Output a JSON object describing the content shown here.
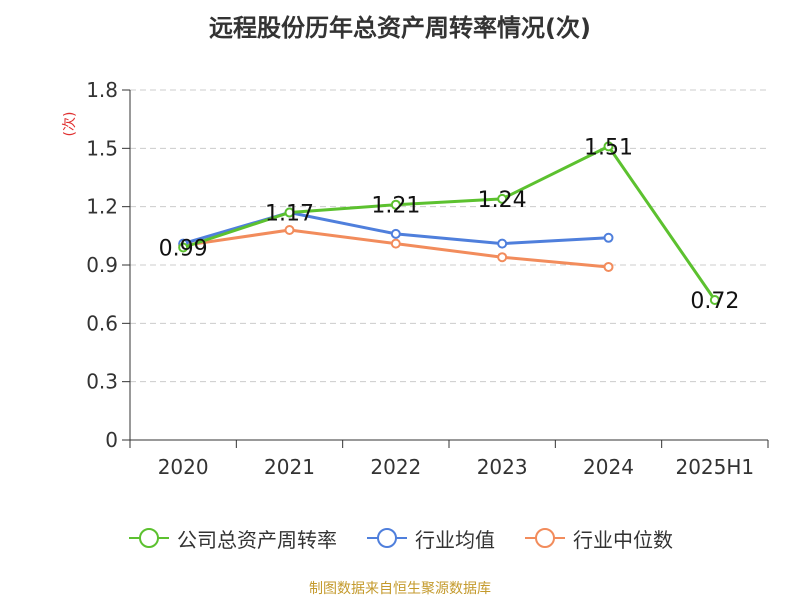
{
  "title": "远程股份历年总资产周转率情况(次)",
  "source": "制图数据来自恒生聚源数据库",
  "chart_data": {
    "type": "line",
    "title": "远程股份历年总资产周转率情况(次)",
    "ylabel": "(次)",
    "ylim": [
      0,
      1.8
    ],
    "yticks": [
      "0",
      "0.3",
      "0.6",
      "0.9",
      "1.2",
      "1.5",
      "1.8"
    ],
    "categories": [
      "2020",
      "2021",
      "2022",
      "2023",
      "2024",
      "2025H1"
    ],
    "grid": true,
    "legend_position": "bottom",
    "series": [
      {
        "name": "公司总资产周转率",
        "color": "#5cc12f",
        "values": [
          0.99,
          1.17,
          1.21,
          1.24,
          1.51,
          0.72
        ],
        "labels": [
          "0.99",
          "1.17",
          "1.21",
          "1.24",
          "1.51",
          "0.72"
        ]
      },
      {
        "name": "行业均值",
        "color": "#4f7fdc",
        "values": [
          1.01,
          1.17,
          1.06,
          1.01,
          1.04,
          null
        ]
      },
      {
        "name": "行业中位数",
        "color": "#f28c5c",
        "values": [
          1.0,
          1.08,
          1.01,
          0.94,
          0.89,
          null
        ]
      }
    ]
  }
}
